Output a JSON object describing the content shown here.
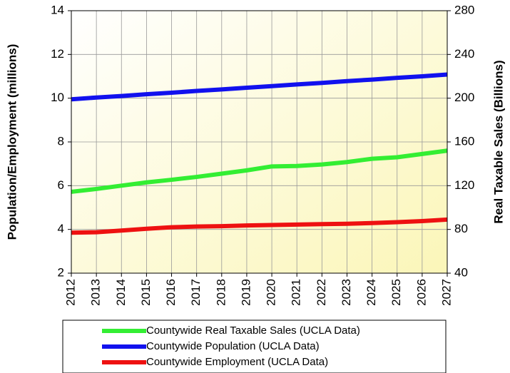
{
  "chart_data": {
    "type": "line",
    "y_label": "Population/Employment (millions)",
    "y2_label": "Real Taxable Sales (Billions)",
    "x": [
      2012,
      2013,
      2014,
      2015,
      2016,
      2017,
      2018,
      2019,
      2020,
      2021,
      2022,
      2023,
      2024,
      2025,
      2026,
      2027
    ],
    "xlim": [
      2012,
      2027
    ],
    "xticks": [
      2012,
      2013,
      2014,
      2015,
      2016,
      2017,
      2018,
      2019,
      2020,
      2021,
      2022,
      2023,
      2024,
      2025,
      2026,
      2027
    ],
    "ylim": [
      2,
      14
    ],
    "yticks": [
      2,
      4,
      6,
      8,
      10,
      12,
      14
    ],
    "y2lim": [
      40,
      280
    ],
    "y2ticks": [
      40,
      80,
      120,
      160,
      200,
      240,
      280
    ],
    "grid": true,
    "legend": "bottom",
    "series": [
      {
        "name": "Countywide Real Taxable Sales (UCLA Data)",
        "color": "#33ee33",
        "axis": "y2",
        "values": [
          114.4,
          117,
          120,
          123,
          125.4,
          128,
          131,
          134,
          137.6,
          138,
          139.4,
          141.6,
          144.6,
          146,
          149,
          152
        ]
      },
      {
        "name": "Countywide Population (UCLA Data)",
        "color": "#1111ee",
        "values": [
          9.95,
          10.03,
          10.1,
          10.18,
          10.25,
          10.33,
          10.4,
          10.48,
          10.55,
          10.63,
          10.7,
          10.78,
          10.85,
          10.93,
          11.0,
          11.08
        ]
      },
      {
        "name": "Countywide Employment (UCLA Data)",
        "color": "#ee1111",
        "values": [
          3.85,
          3.87,
          3.95,
          4.03,
          4.1,
          4.13,
          4.15,
          4.18,
          4.2,
          4.22,
          4.24,
          4.26,
          4.29,
          4.33,
          4.38,
          4.45
        ]
      }
    ]
  }
}
